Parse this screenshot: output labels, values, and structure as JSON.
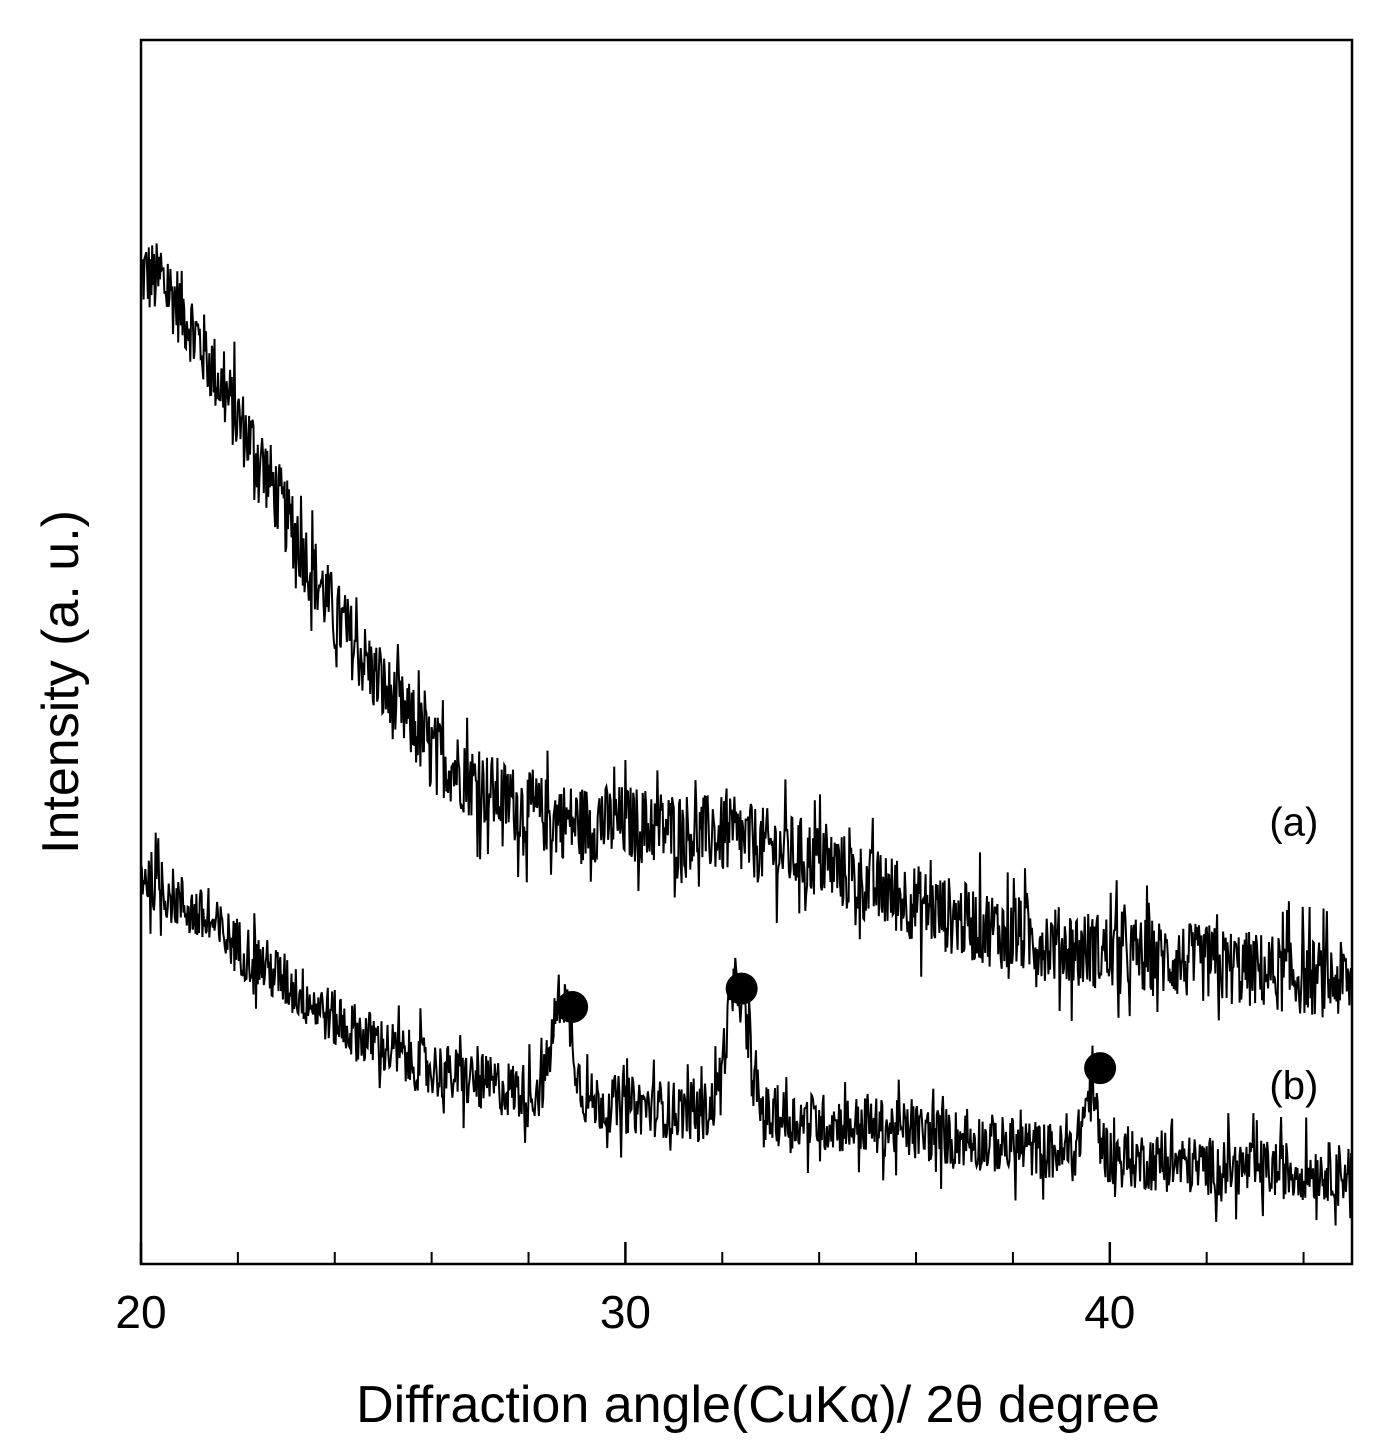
{
  "chart_data": {
    "type": "line",
    "title": "",
    "xlabel": "Diffraction angle(CuKα)/ 2θ degree",
    "ylabel": "Intensity (a. u.)",
    "xlim": [
      20,
      45
    ],
    "ylim": [
      0,
      100
    ],
    "x_major_ticks": [
      20,
      30,
      40
    ],
    "x_tick_labels": [
      "20",
      "30",
      "40"
    ],
    "x_minor_ticks": [
      22,
      24,
      26,
      28,
      32,
      34,
      36,
      38,
      42,
      44
    ],
    "y_ticks_shown": false,
    "grid": false,
    "series": [
      {
        "name": "(a)",
        "label": "(a)",
        "noise_amplitude": 3.2,
        "points": [
          [
            20.0,
            81
          ],
          [
            20.5,
            80
          ],
          [
            21.0,
            77
          ],
          [
            21.5,
            73
          ],
          [
            22.0,
            69
          ],
          [
            22.5,
            65.5
          ],
          [
            23.0,
            61
          ],
          [
            23.5,
            57
          ],
          [
            24.0,
            53
          ],
          [
            24.5,
            50
          ],
          [
            25.0,
            47
          ],
          [
            25.5,
            44.5
          ],
          [
            26.0,
            42
          ],
          [
            26.5,
            40.5
          ],
          [
            27.0,
            39
          ],
          [
            27.5,
            38
          ],
          [
            28.0,
            37
          ],
          [
            28.5,
            36.5
          ],
          [
            29.0,
            36
          ],
          [
            30.0,
            36
          ],
          [
            31.0,
            35.5
          ],
          [
            32.0,
            35
          ],
          [
            33.0,
            34
          ],
          [
            34.0,
            33
          ],
          [
            35.0,
            31
          ],
          [
            36.0,
            29.5
          ],
          [
            37.0,
            28
          ],
          [
            38.0,
            27
          ],
          [
            39.0,
            26
          ],
          [
            40.0,
            25.5
          ],
          [
            41.0,
            25
          ],
          [
            42.0,
            24.5
          ],
          [
            43.0,
            24
          ],
          [
            44.0,
            23.5
          ],
          [
            45.0,
            23
          ]
        ]
      },
      {
        "name": "(b)",
        "label": "(b)",
        "noise_amplitude": 2.4,
        "points": [
          [
            20.0,
            32
          ],
          [
            20.5,
            30.5
          ],
          [
            21.0,
            29
          ],
          [
            21.5,
            27.5
          ],
          [
            22.0,
            26
          ],
          [
            22.5,
            24.5
          ],
          [
            23.0,
            23
          ],
          [
            23.5,
            21.5
          ],
          [
            24.0,
            20
          ],
          [
            24.5,
            18.8
          ],
          [
            25.0,
            17.8
          ],
          [
            25.5,
            16.8
          ],
          [
            26.0,
            16
          ],
          [
            26.5,
            15.3
          ],
          [
            27.0,
            14.8
          ],
          [
            28.0,
            14
          ],
          [
            29.0,
            13.3
          ],
          [
            30.0,
            13
          ],
          [
            31.0,
            12.6
          ],
          [
            32.0,
            12.3
          ],
          [
            33.0,
            12
          ],
          [
            34.0,
            11.6
          ],
          [
            35.0,
            11.3
          ],
          [
            36.0,
            10.8
          ],
          [
            37.0,
            10.2
          ],
          [
            38.0,
            9.6
          ],
          [
            39.0,
            9.1
          ],
          [
            40.0,
            8.7
          ],
          [
            41.0,
            8.3
          ],
          [
            42.0,
            8
          ],
          [
            43.0,
            7.8
          ],
          [
            44.0,
            7.6
          ],
          [
            45.0,
            7.5
          ]
        ],
        "peaks": [
          {
            "x": 28.7,
            "height": 8.5,
            "width": 0.2
          },
          {
            "x": 32.3,
            "height": 10.5,
            "width": 0.22
          },
          {
            "x": 39.6,
            "height": 5,
            "width": 0.15
          }
        ]
      }
    ],
    "markers": [
      {
        "x": 28.9,
        "y": 21,
        "symbol": "filled-circle",
        "series": "(b)"
      },
      {
        "x": 32.4,
        "y": 22.5,
        "symbol": "filled-circle",
        "series": "(b)"
      },
      {
        "x": 39.8,
        "y": 16,
        "symbol": "filled-circle",
        "series": "(b)"
      }
    ],
    "series_label_positions": [
      {
        "series": "(a)",
        "x": 43.8,
        "y": 35
      },
      {
        "series": "(b)",
        "x": 43.8,
        "y": 13.5
      }
    ],
    "line_color": "#000000"
  }
}
